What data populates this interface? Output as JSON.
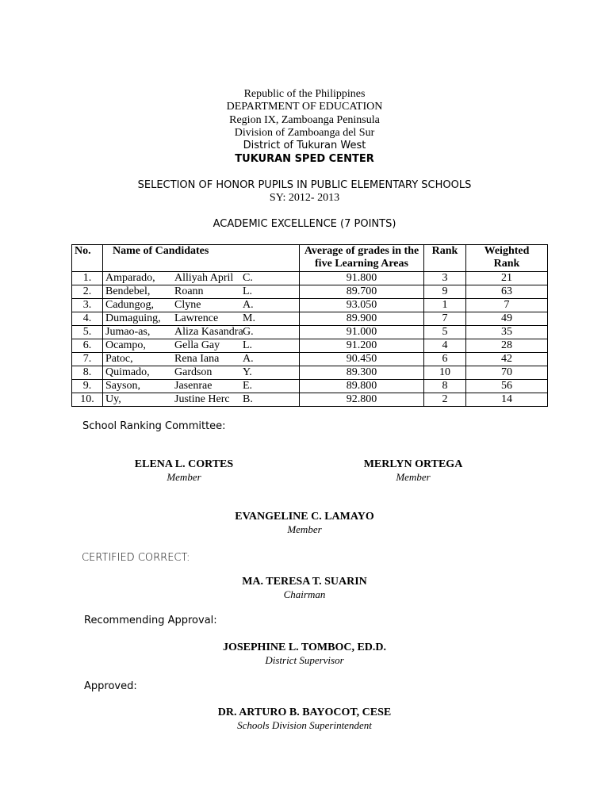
{
  "header": {
    "line1": "Republic of the Philippines",
    "line2": "DEPARTMENT OF EDUCATION",
    "line3": "Region IX, Zamboanga Peninsula",
    "line4": "Division of Zamboanga del Sur",
    "line5": "District of Tukuran West",
    "line6": "TUKURAN SPED CENTER"
  },
  "title": "SELECTION OF HONOR PUPILS IN PUBLIC ELEMENTARY SCHOOLS",
  "sy": "SY: 2012- 2013",
  "subtitle": "ACADEMIC EXCELLENCE (7 POINTS)",
  "table": {
    "headers": [
      "No.",
      "Name of Candidates",
      "Average of grades in the five Learning Areas",
      "Rank",
      "Weighted Rank"
    ],
    "rows": [
      {
        "no": "1.",
        "last": "Amparado,",
        "first": "Alliyah April",
        "mi": "C.",
        "avg": "91.800",
        "rank": "3",
        "weighted": "21"
      },
      {
        "no": "2.",
        "last": "Bendebel,",
        "first": "Roann",
        "mi": "L.",
        "avg": "89.700",
        "rank": "9",
        "weighted": "63"
      },
      {
        "no": "3.",
        "last": "Cadungog,",
        "first": "Clyne",
        "mi": "A.",
        "avg": "93.050",
        "rank": "1",
        "weighted": "7"
      },
      {
        "no": "4.",
        "last": "Dumaguing,",
        "first": "Lawrence",
        "mi": "M.",
        "avg": "89.900",
        "rank": "7",
        "weighted": "49"
      },
      {
        "no": "5.",
        "last": "Jumao-as,",
        "first": "Aliza Kasandra",
        "mi": "G.",
        "avg": "91.000",
        "rank": "5",
        "weighted": "35"
      },
      {
        "no": "6.",
        "last": "Ocampo,",
        "first": "Gella Gay",
        "mi": "L.",
        "avg": "91.200",
        "rank": "4",
        "weighted": "28"
      },
      {
        "no": "7.",
        "last": "Patoc,",
        "first": "Rena Iana",
        "mi": "A.",
        "avg": "90.450",
        "rank": "6",
        "weighted": "42"
      },
      {
        "no": "8.",
        "last": "Quimado,",
        "first": "Gardson",
        "mi": "Y.",
        "avg": "89.300",
        "rank": "10",
        "weighted": "70"
      },
      {
        "no": "9.",
        "last": "Sayson,",
        "first": "Jasenrae",
        "mi": "E.",
        "avg": "89.800",
        "rank": "8",
        "weighted": "56"
      },
      {
        "no": "10.",
        "last": "Uy,",
        "first": "Justine Herc",
        "mi": "B.",
        "avg": "92.800",
        "rank": "2",
        "weighted": "14"
      }
    ]
  },
  "committee_label": "School Ranking Committee:",
  "signatories": [
    {
      "name": "ELENA L. CORTES",
      "role": "Member"
    },
    {
      "name": "MERLYN ORTEGA",
      "role": "Member"
    },
    {
      "name": "EVANGELINE C. LAMAYO",
      "role": "Member"
    },
    {
      "name": "MA. TERESA T. SUARIN",
      "role": "Chairman"
    },
    {
      "name": "JOSEPHINE L. TOMBOC, ED.D.",
      "role": "District Supervisor"
    },
    {
      "name": "DR. ARTURO B. BAYOCOT, CESE",
      "role": "Schools Division Superintendent"
    }
  ],
  "certified_label": "CERTIFIED CORRECT:",
  "recommending_label": "Recommending Approval:",
  "approved_label": "Approved:"
}
